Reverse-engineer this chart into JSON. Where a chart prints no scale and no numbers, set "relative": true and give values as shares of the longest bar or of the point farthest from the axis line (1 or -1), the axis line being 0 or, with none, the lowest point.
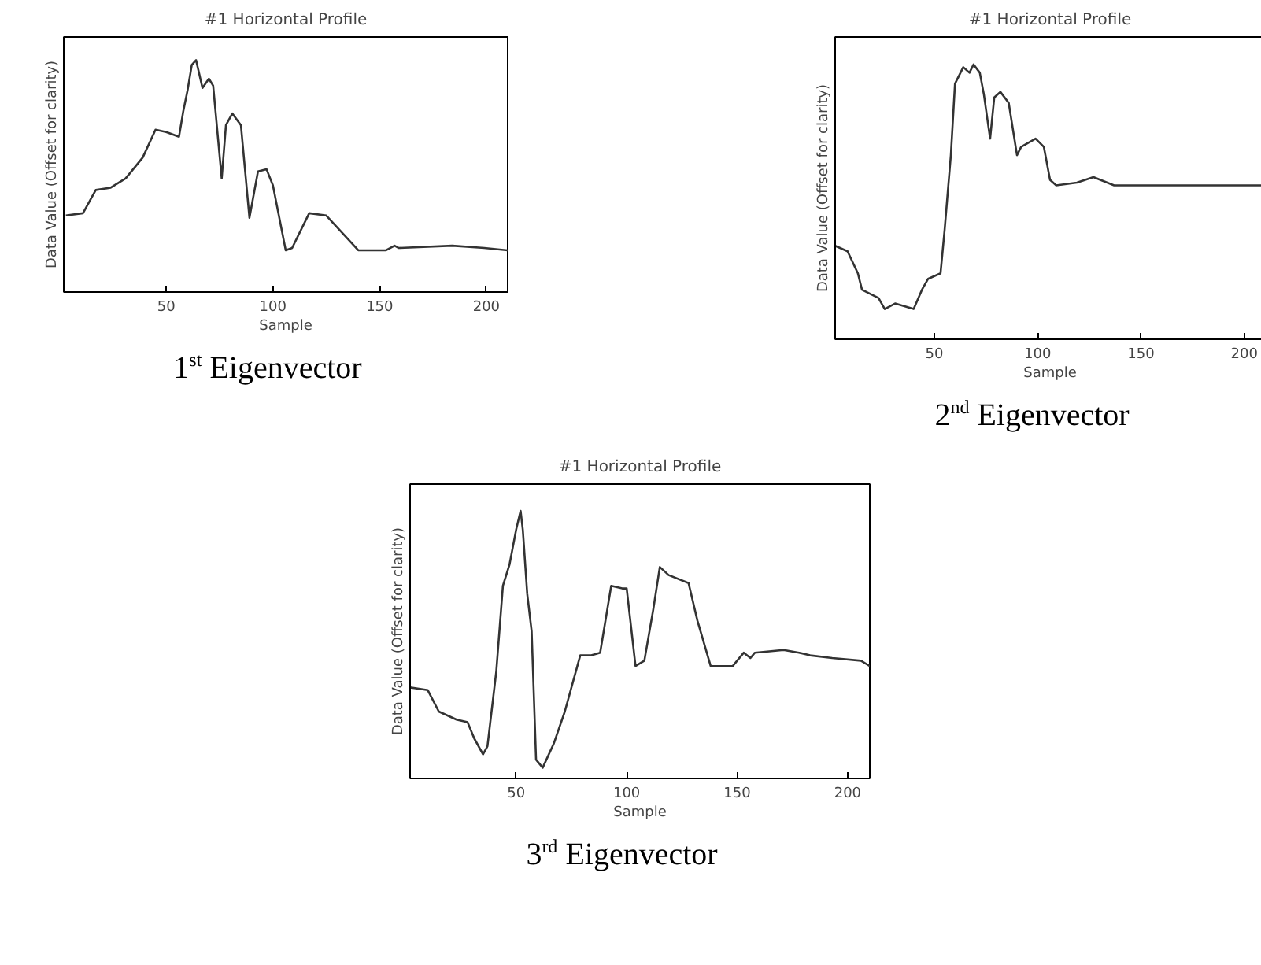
{
  "chart_data": [
    {
      "type": "line",
      "title": "#1 Horizontal Profile",
      "xlabel": "Sample",
      "ylabel": "Data Value (Offset for clarity)",
      "relative": true,
      "color": "#333333",
      "xlim": [
        2,
        210
      ],
      "xticks": [
        50,
        100,
        150,
        200
      ],
      "grid": false,
      "legend": false,
      "marker": "none",
      "annotations": [
        "1$^{st}$ Eigenvector"
      ],
      "x": [
        3,
        11,
        17,
        24,
        31,
        39,
        45,
        50,
        56,
        58,
        60,
        62,
        64,
        65,
        67,
        70,
        72,
        76,
        78,
        81,
        85,
        89,
        93,
        97,
        100,
        106,
        109,
        117,
        125,
        133,
        140,
        153,
        157,
        159,
        184,
        199,
        210
      ],
      "values": [
        0.33,
        0.34,
        0.44,
        0.45,
        0.49,
        0.58,
        0.7,
        0.69,
        0.67,
        0.78,
        0.87,
        0.98,
        1.0,
        0.96,
        0.88,
        0.92,
        0.89,
        0.49,
        0.72,
        0.77,
        0.72,
        0.32,
        0.52,
        0.53,
        0.46,
        0.18,
        0.19,
        0.34,
        0.33,
        0.25,
        0.18,
        0.18,
        0.2,
        0.19,
        0.2,
        0.19,
        0.18
      ]
    },
    {
      "type": "line",
      "title": "#1 Horizontal Profile",
      "xlabel": "Sample",
      "ylabel": "Data Value (Offset for clarity)",
      "relative": true,
      "color": "#333333",
      "xlim": [
        2,
        210
      ],
      "xticks": [
        50,
        100,
        150,
        200
      ],
      "grid": false,
      "legend": false,
      "marker": "none",
      "annotations": [
        "2$^{nd}$ Eigenvector"
      ],
      "x": [
        2,
        8,
        13,
        15,
        23,
        26,
        31,
        40,
        44,
        47,
        53,
        55,
        58,
        60,
        64,
        67,
        69,
        72,
        74,
        77,
        79,
        82,
        86,
        90,
        92,
        99,
        103,
        106,
        109,
        119,
        127,
        137,
        210
      ],
      "values": [
        0.34,
        0.32,
        0.24,
        0.18,
        0.15,
        0.11,
        0.13,
        0.11,
        0.18,
        0.22,
        0.24,
        0.4,
        0.67,
        0.93,
        0.99,
        0.97,
        1.0,
        0.97,
        0.89,
        0.73,
        0.88,
        0.9,
        0.86,
        0.67,
        0.7,
        0.73,
        0.7,
        0.58,
        0.56,
        0.57,
        0.59,
        0.56,
        0.56
      ]
    },
    {
      "type": "line",
      "title": "#1 Horizontal Profile",
      "xlabel": "Sample",
      "ylabel": "Data Value (Offset for clarity)",
      "relative": true,
      "color": "#333333",
      "xlim": [
        2,
        210
      ],
      "xticks": [
        50,
        100,
        150,
        200
      ],
      "grid": false,
      "legend": false,
      "marker": "none",
      "annotations": [
        "3$^{rd}$ Eigenvector"
      ],
      "x": [
        2,
        10,
        15,
        23,
        28,
        31,
        35,
        37,
        41,
        44,
        47,
        50,
        52,
        53,
        55,
        57,
        59,
        62,
        67,
        72,
        79,
        84,
        88,
        93,
        98,
        100,
        104,
        108,
        112,
        115,
        119,
        128,
        132,
        138,
        148,
        153,
        156,
        158,
        171,
        178,
        183,
        193,
        206,
        210
      ],
      "values": [
        0.34,
        0.33,
        0.25,
        0.22,
        0.21,
        0.15,
        0.09,
        0.12,
        0.4,
        0.72,
        0.8,
        0.93,
        1.0,
        0.93,
        0.69,
        0.55,
        0.07,
        0.04,
        0.13,
        0.25,
        0.46,
        0.46,
        0.47,
        0.72,
        0.71,
        0.71,
        0.42,
        0.44,
        0.63,
        0.79,
        0.76,
        0.73,
        0.59,
        0.42,
        0.42,
        0.47,
        0.45,
        0.47,
        0.48,
        0.47,
        0.46,
        0.45,
        0.44,
        0.42
      ]
    }
  ]
}
